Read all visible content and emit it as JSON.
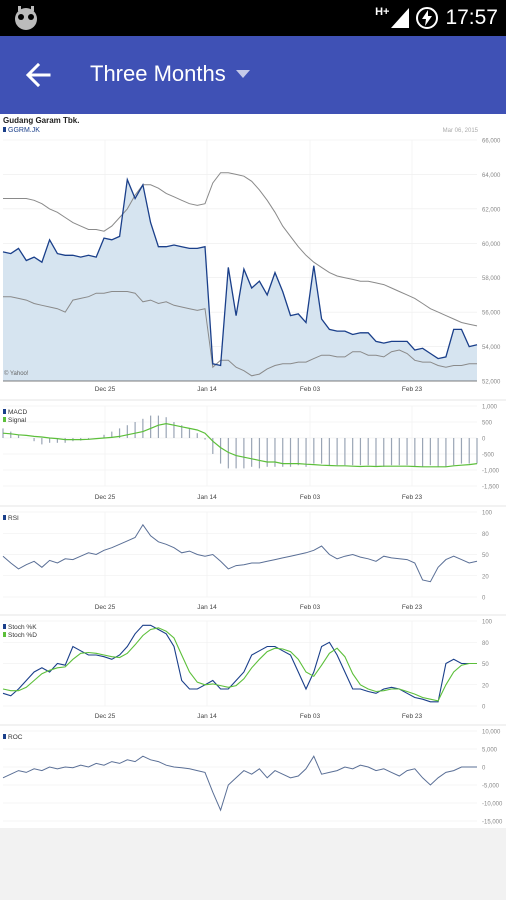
{
  "status_bar": {
    "time": "17:57",
    "network": "H+"
  },
  "app_bar": {
    "title": "Three Months",
    "back_icon": "arrow-back-icon",
    "dropdown_icon": "caret-down-icon"
  },
  "header": {
    "company": "Gudang Garam Tbk.",
    "ticker": "GGRM.JK",
    "date": "Mar 06, 2015",
    "source": "© Yahoo!"
  },
  "x_ticks": [
    "Dec 25",
    "Jan 14",
    "Feb 03",
    "Feb 23"
  ],
  "chart_data": [
    {
      "type": "area",
      "series": [
        {
          "name": "GGRM.JK",
          "values": [
            59500,
            59400,
            59700,
            59000,
            59200,
            58900,
            60200,
            59400,
            59300,
            59300,
            59200,
            59300,
            59200,
            60300,
            60200,
            60400,
            63700,
            62600,
            63400,
            61200,
            59800,
            59800,
            59900,
            59800,
            59700,
            59700,
            59800,
            53000,
            52900,
            58600,
            55800,
            58500,
            57400,
            57800,
            57000,
            58300,
            57200,
            55800,
            55900,
            55400,
            58700,
            55600,
            55000,
            54900,
            54900,
            54700,
            54800,
            54800,
            54300,
            54200,
            54300,
            54300,
            54300,
            53800,
            53900,
            53600,
            53300,
            53400,
            55000,
            55000,
            54000,
            54100
          ]
        },
        {
          "name": "",
          "values": [
            62600,
            62600,
            62600,
            62600,
            62500,
            62300,
            62000,
            61800,
            61500,
            61200,
            61000,
            60800,
            60800,
            60700,
            61000,
            61500,
            62000,
            62800,
            63400,
            63400,
            63200,
            62900,
            62700,
            62500,
            62300,
            62200,
            62300,
            63500,
            64100,
            64100,
            64000,
            63900,
            63600,
            63100,
            62500,
            61800,
            61000,
            60400,
            59800,
            59300,
            58900,
            58600,
            58300,
            58100,
            58000,
            57900,
            57800,
            57800,
            57700,
            57600,
            57400,
            57200,
            57000,
            56800,
            56500,
            56200,
            56000,
            55800,
            55600,
            55400,
            55300,
            55200
          ]
        },
        {
          "name": "",
          "values": [
            56900,
            56900,
            56800,
            56700,
            56500,
            56400,
            56300,
            56200,
            56000,
            56700,
            56800,
            56900,
            57100,
            57100,
            57200,
            57200,
            57200,
            57100,
            56600,
            56700,
            56500,
            56600,
            56400,
            56300,
            56200,
            56100,
            56200,
            52800,
            53200,
            53200,
            52800,
            52600,
            52300,
            52400,
            52700,
            52900,
            53000,
            53000,
            53100,
            53100,
            53300,
            53500,
            53500,
            53400,
            53400,
            53700,
            53700,
            53500,
            53500,
            53400,
            53700,
            53800,
            53600,
            53200,
            53100,
            53100,
            52900,
            52800,
            52900,
            52900,
            53000,
            53000
          ]
        }
      ],
      "ylim": [
        52000,
        66000
      ],
      "y_ticks": [
        "66,000",
        "64,000",
        "62,000",
        "60,000",
        "58,000",
        "56,000",
        "54,000",
        "52,000"
      ]
    },
    {
      "type": "bar",
      "series": [
        {
          "name": "MACD",
          "values": [
            300,
            200,
            100,
            0,
            -100,
            -200,
            -150,
            -150,
            -150,
            -100,
            -80,
            -50,
            0,
            100,
            200,
            300,
            400,
            500,
            600,
            700,
            700,
            650,
            500,
            400,
            300,
            150,
            -50,
            -500,
            -800,
            -950,
            -950,
            -950,
            -900,
            -950,
            -900,
            -900,
            -900,
            -900,
            -850,
            -900,
            -800,
            -800,
            -850,
            -850,
            -850,
            -850,
            -850,
            -850,
            -900,
            -900,
            -850,
            -850,
            -850,
            -900,
            -900,
            -850,
            -900,
            -900,
            -850,
            -800,
            -800,
            -800
          ]
        },
        {
          "name": "Signal",
          "values": [
            150,
            130,
            100,
            80,
            50,
            30,
            0,
            -20,
            -50,
            -50,
            -50,
            -40,
            -20,
            0,
            20,
            50,
            100,
            150,
            200,
            300,
            400,
            450,
            400,
            350,
            300,
            250,
            150,
            -100,
            -300,
            -450,
            -550,
            -600,
            -650,
            -700,
            -750,
            -750,
            -800,
            -800,
            -800,
            -820,
            -830,
            -850,
            -860,
            -870,
            -870,
            -880,
            -890,
            -880,
            -890,
            -880,
            -880,
            -880,
            -880,
            -890,
            -900,
            -900,
            -900,
            -900,
            -870,
            -850,
            -830,
            -800
          ]
        }
      ],
      "ylim": [
        -1500,
        1000
      ],
      "y_ticks": [
        "1,000",
        "500",
        "0",
        "-500",
        "-1,000",
        "-1,500"
      ]
    },
    {
      "type": "line",
      "series": [
        {
          "name": "RSI",
          "values": [
            48,
            40,
            33,
            38,
            42,
            35,
            43,
            40,
            45,
            44,
            48,
            52,
            50,
            55,
            58,
            62,
            66,
            70,
            85,
            72,
            65,
            62,
            58,
            52,
            54,
            50,
            48,
            50,
            42,
            33,
            37,
            38,
            40,
            40,
            42,
            44,
            46,
            48,
            50,
            52,
            55,
            60,
            50,
            45,
            48,
            50,
            47,
            45,
            42,
            48,
            46,
            45,
            44,
            40,
            20,
            18,
            35,
            44,
            48,
            44,
            40,
            42
          ]
        }
      ],
      "ylim": [
        0,
        100
      ],
      "y_ticks": [
        "100",
        "80",
        "50",
        "20",
        "0"
      ]
    },
    {
      "type": "line",
      "series": [
        {
          "name": "Stoch %K",
          "values": [
            15,
            12,
            20,
            30,
            40,
            45,
            40,
            50,
            48,
            70,
            65,
            60,
            60,
            58,
            55,
            60,
            70,
            85,
            95,
            95,
            90,
            85,
            70,
            30,
            20,
            20,
            25,
            30,
            20,
            20,
            30,
            40,
            60,
            65,
            70,
            70,
            65,
            60,
            40,
            20,
            40,
            70,
            75,
            60,
            40,
            20,
            20,
            17,
            15,
            20,
            22,
            20,
            15,
            10,
            8,
            5,
            5,
            50,
            55,
            50,
            50,
            50
          ]
        },
        {
          "name": "Stoch %D",
          "values": [
            20,
            18,
            18,
            22,
            30,
            38,
            42,
            45,
            46,
            55,
            62,
            63,
            62,
            60,
            58,
            57,
            62,
            72,
            83,
            90,
            92,
            88,
            80,
            60,
            40,
            28,
            25,
            26,
            24,
            22,
            24,
            32,
            45,
            55,
            64,
            68,
            67,
            64,
            55,
            40,
            35,
            48,
            62,
            68,
            58,
            38,
            25,
            20,
            17,
            18,
            20,
            20,
            17,
            14,
            10,
            8,
            6,
            25,
            40,
            48,
            50,
            50
          ]
        }
      ],
      "ylim": [
        0,
        100
      ],
      "y_ticks": [
        "100",
        "80",
        "50",
        "20",
        "0"
      ]
    },
    {
      "type": "line",
      "series": [
        {
          "name": "ROC",
          "values": [
            -3000,
            -2000,
            -1000,
            -1500,
            -500,
            -1000,
            0,
            -500,
            0,
            -200,
            500,
            0,
            1000,
            500,
            1500,
            1000,
            2000,
            1500,
            3000,
            2000,
            1500,
            500,
            0,
            -200,
            -500,
            -1000,
            -1500,
            -7000,
            -12000,
            -5000,
            -3000,
            -1000,
            -2000,
            -500,
            -3000,
            -1000,
            -2000,
            -3000,
            -2500,
            -500,
            3000,
            -2000,
            -1500,
            -1000,
            0,
            -500,
            500,
            0,
            -1000,
            -500,
            -1500,
            -2500,
            -1000,
            -500,
            -3000,
            -5000,
            -3000,
            -1500,
            -1000,
            0,
            0,
            0
          ]
        }
      ],
      "ylim": [
        -15000,
        10000
      ],
      "y_ticks": [
        "10,000",
        "5,000",
        "0",
        "-5,000",
        "-10,000",
        "-15,000"
      ]
    }
  ]
}
